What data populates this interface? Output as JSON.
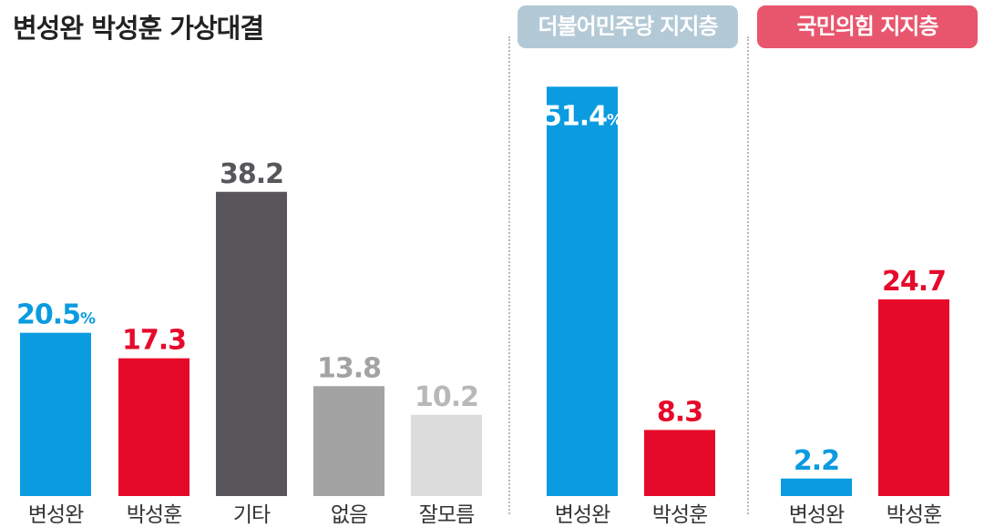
{
  "chart_data": [
    {
      "type": "bar",
      "title": "변성완 박성훈 가상대결",
      "categories": [
        "변성완",
        "박성훈",
        "기타",
        "없음",
        "잘모름"
      ],
      "values": [
        20.5,
        17.3,
        38.2,
        13.8,
        10.2
      ],
      "value_labels": [
        "20.5",
        "17.3",
        "38.2",
        "13.8",
        "10.2"
      ],
      "colors": [
        "#0a9be0",
        "#e60a2a",
        "#58565a",
        "#a3a3a3",
        "#dcdcdc"
      ],
      "label_colors": [
        "#0a9be0",
        "#e60a2a",
        "#58565a",
        "#a3a3a3",
        "#b8b8b8"
      ],
      "unit": "%",
      "ylim": [
        0,
        60
      ],
      "grid": false,
      "legend": "none"
    },
    {
      "type": "bar",
      "title": "더불어민주당 지지층",
      "badge_color": "#b3c9d6",
      "categories": [
        "변성완",
        "박성훈"
      ],
      "values": [
        51.4,
        8.3
      ],
      "value_labels": [
        "51.4",
        "8.3"
      ],
      "colors": [
        "#0a9be0",
        "#e60a2a"
      ],
      "label_colors": [
        "#ffffff",
        "#e60a2a"
      ],
      "label_inside_first": true,
      "unit": "%",
      "ylim": [
        0,
        60
      ],
      "grid": false,
      "legend": "none"
    },
    {
      "type": "bar",
      "title": "국민의힘 지지층",
      "badge_color": "#e8566e",
      "categories": [
        "변성완",
        "박성훈"
      ],
      "values": [
        2.2,
        24.7
      ],
      "value_labels": [
        "2.2",
        "24.7"
      ],
      "colors": [
        "#0a9be0",
        "#e60a2a"
      ],
      "label_colors": [
        "#0a9be0",
        "#e60a2a"
      ],
      "unit": "",
      "ylim": [
        0,
        60
      ],
      "grid": false,
      "legend": "none"
    }
  ]
}
